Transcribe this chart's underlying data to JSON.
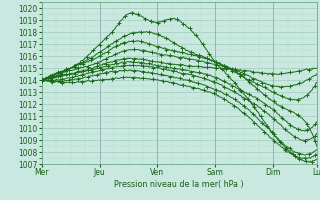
{
  "xlabel": "Pression niveau de la mer( hPa )",
  "ylim": [
    1007,
    1020.5
  ],
  "yticks": [
    1007,
    1008,
    1009,
    1010,
    1011,
    1012,
    1013,
    1014,
    1015,
    1016,
    1017,
    1018,
    1019,
    1020
  ],
  "xtick_labels": [
    "Mer",
    "Jeu",
    "Ven",
    "Sam",
    "Dim",
    "Lu"
  ],
  "xtick_positions": [
    0,
    24,
    48,
    72,
    96,
    114
  ],
  "bg_color": "#c8e8e0",
  "plot_bg_color": "#c8e8e0",
  "line_color": "#1a6b1a",
  "grid_color_major": "#a0ccbc",
  "grid_color_minor": "#b8dcd0",
  "vline_color": "#9090a8",
  "linewidth": 0.7,
  "markersize": 2.5,
  "lines": [
    {
      "t": [
        0,
        4,
        8,
        12,
        16,
        20,
        24,
        30,
        36,
        42,
        48,
        54,
        60,
        66,
        72,
        78,
        84,
        90,
        96,
        102,
        108,
        114
      ],
      "v": [
        1014.0,
        1014.2,
        1014.5,
        1015.0,
        1015.5,
        1016.2,
        1017.0,
        1018.2,
        1019.5,
        1019.2,
        1018.8,
        1019.1,
        1018.5,
        1017.2,
        1015.5,
        1014.2,
        1012.8,
        1011.2,
        1009.5,
        1008.2,
        1007.3,
        1007.4
      ],
      "marker_step": 7
    },
    {
      "t": [
        0,
        12,
        24,
        36,
        42,
        48,
        54,
        60,
        66,
        72,
        80,
        88,
        96,
        102,
        108,
        114
      ],
      "v": [
        1014.0,
        1015.0,
        1016.3,
        1017.8,
        1018.0,
        1017.8,
        1017.2,
        1016.5,
        1016.0,
        1015.5,
        1014.8,
        1013.5,
        1012.2,
        1011.5,
        1010.8,
        1008.5
      ],
      "marker_step": 9
    },
    {
      "t": [
        0,
        12,
        24,
        36,
        48,
        60,
        72,
        84,
        96,
        108,
        114
      ],
      "v": [
        1014.0,
        1015.0,
        1016.0,
        1017.2,
        1016.8,
        1016.2,
        1015.5,
        1014.2,
        1013.0,
        1012.5,
        1013.8
      ],
      "marker_step": 9
    },
    {
      "t": [
        0,
        12,
        24,
        36,
        48,
        60,
        72,
        84,
        96,
        108,
        114
      ],
      "v": [
        1014.0,
        1014.8,
        1015.5,
        1016.5,
        1016.2,
        1015.8,
        1015.3,
        1014.5,
        1013.5,
        1013.8,
        1014.5
      ],
      "marker_step": 10
    },
    {
      "t": [
        0,
        12,
        24,
        36,
        48,
        60,
        72,
        84,
        96,
        108,
        114
      ],
      "v": [
        1014.0,
        1014.5,
        1015.2,
        1015.8,
        1015.5,
        1015.2,
        1015.0,
        1014.8,
        1014.5,
        1014.8,
        1015.0
      ],
      "marker_step": 10
    },
    {
      "t": [
        0,
        12,
        24,
        36,
        48,
        60,
        72,
        84,
        96,
        108,
        114
      ],
      "v": [
        1014.0,
        1014.5,
        1015.0,
        1015.5,
        1015.2,
        1014.8,
        1014.2,
        1013.0,
        1011.5,
        1009.8,
        1010.5
      ],
      "marker_step": 9
    },
    {
      "t": [
        0,
        12,
        24,
        36,
        48,
        60,
        72,
        84,
        96,
        108,
        114
      ],
      "v": [
        1014.0,
        1014.2,
        1014.8,
        1015.2,
        1015.0,
        1014.5,
        1013.8,
        1012.5,
        1010.8,
        1009.0,
        1009.5
      ],
      "marker_step": 11
    },
    {
      "t": [
        0,
        12,
        24,
        36,
        48,
        60,
        72,
        84,
        96,
        108,
        114
      ],
      "v": [
        1014.0,
        1014.0,
        1014.5,
        1014.8,
        1014.5,
        1014.0,
        1013.2,
        1011.8,
        1009.5,
        1007.8,
        1008.2
      ],
      "marker_step": 10
    },
    {
      "t": [
        0,
        12,
        24,
        36,
        48,
        60,
        72,
        84,
        96,
        108,
        114
      ],
      "v": [
        1014.0,
        1013.8,
        1014.0,
        1014.2,
        1014.0,
        1013.5,
        1012.8,
        1011.2,
        1009.0,
        1007.5,
        1007.8
      ],
      "marker_step": 11
    }
  ]
}
